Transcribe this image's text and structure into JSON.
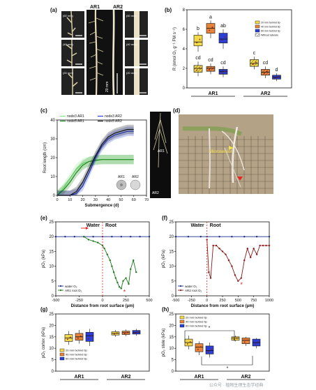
{
  "panels": {
    "a": {
      "letter": "(a)",
      "col_labels": [
        "AR1",
        "AR2"
      ],
      "left_tiles": [
        "(60 mm)",
        "(40 mm)",
        "(20 mm)"
      ],
      "right_tiles": [
        "(60 mm)",
        "(40 mm)",
        "(20 mm)"
      ],
      "scale_text": "20 mm"
    },
    "b": {
      "letter": "(b)",
      "chart_data": {
        "type": "box",
        "ylabel": "R (nmol O₂ g⁻¹ FM s⁻¹)",
        "ylim": [
          0,
          8
        ],
        "yticks": [
          0,
          2,
          4,
          6,
          8
        ],
        "groups": [
          "AR1",
          "AR2"
        ],
        "legend": [
          "20 mm behind tip",
          "40 mm behind tip",
          "60 mm behind tip",
          "Without laterals"
        ],
        "boxes": [
          {
            "group": "AR1",
            "series": "20 mm behind tip",
            "laterals": true,
            "q1": 4.3,
            "median": 4.7,
            "q3": 5.4,
            "min": 3.7,
            "max": 5.7,
            "letter": "b"
          },
          {
            "group": "AR1",
            "series": "40 mm behind tip",
            "laterals": true,
            "q1": 5.6,
            "median": 6.1,
            "q3": 6.6,
            "min": 5.1,
            "max": 6.9,
            "letter": "a"
          },
          {
            "group": "AR1",
            "series": "60 mm behind tip",
            "laterals": true,
            "q1": 4.6,
            "median": 5.0,
            "q3": 5.6,
            "min": 4.0,
            "max": 6.0,
            "letter": "ab"
          },
          {
            "group": "AR1",
            "series": "20 mm behind tip",
            "laterals": false,
            "q1": 1.6,
            "median": 2.0,
            "q3": 2.3,
            "min": 1.2,
            "max": 2.7,
            "letter": "cd"
          },
          {
            "group": "AR1",
            "series": "40 mm behind tip",
            "laterals": false,
            "q1": 1.7,
            "median": 2.0,
            "q3": 2.2,
            "min": 1.4,
            "max": 2.5,
            "letter": "cd"
          },
          {
            "group": "AR1",
            "series": "60 mm behind tip",
            "laterals": false,
            "q1": 1.4,
            "median": 1.7,
            "q3": 1.9,
            "min": 1.1,
            "max": 2.2,
            "letter": "cd"
          },
          {
            "group": "AR2",
            "series": "20 mm behind tip",
            "laterals": false,
            "q1": 2.2,
            "median": 2.5,
            "q3": 2.9,
            "min": 1.9,
            "max": 3.2,
            "letter": "c"
          },
          {
            "group": "AR2",
            "series": "40 mm behind tip",
            "laterals": false,
            "q1": 1.3,
            "median": 1.6,
            "q3": 1.9,
            "min": 1.0,
            "max": 2.2,
            "letter": "cd"
          },
          {
            "group": "AR2",
            "series": "60 mm behind tip",
            "laterals": false,
            "q1": 0.9,
            "median": 1.1,
            "q3": 1.3,
            "min": 0.7,
            "max": 1.5,
            "letter": "d"
          }
        ]
      }
    },
    "c": {
      "letter": "(c)",
      "chart_data": {
        "type": "line",
        "xlabel": "Submergence (d)",
        "ylabel": "Root length (cm)",
        "xlim": [
          0,
          70
        ],
        "ylim": [
          0,
          40
        ],
        "xticks": [
          0,
          10,
          20,
          30,
          40,
          50,
          60,
          70
        ],
        "yticks": [
          0,
          10,
          20,
          30,
          40
        ],
        "series": [
          {
            "name": "node3 AR1",
            "color": "#7fe37f",
            "x": [
              0,
              5,
              10,
              15,
              20,
              25,
              30,
              35,
              40,
              45,
              50,
              55,
              60
            ],
            "y": [
              0,
              4,
              9,
              14,
              17,
              18,
              19,
              19,
              19,
              19,
              19,
              19,
              19
            ]
          },
          {
            "name": "node5 AR1",
            "color": "#1f8a1f",
            "x": [
              0,
              5,
              10,
              15,
              20,
              25,
              30,
              35,
              40,
              45,
              50,
              55,
              60
            ],
            "y": [
              0,
              3,
              7,
              12,
              16,
              18,
              18.5,
              19,
              19,
              19,
              19,
              19,
              19
            ]
          },
          {
            "name": "node3 AR2",
            "color": "#1f3fd6",
            "x": [
              0,
              5,
              10,
              15,
              20,
              25,
              30,
              35,
              40,
              45,
              50,
              55,
              60
            ],
            "y": [
              0,
              0,
              0,
              1,
              5,
              12,
              20,
              26,
              30,
              32,
              33,
              34,
              34
            ]
          },
          {
            "name": "node5 AR2",
            "color": "#111111",
            "x": [
              0,
              5,
              10,
              15,
              20,
              25,
              30,
              35,
              40,
              45,
              50,
              55,
              60
            ],
            "y": [
              0,
              0,
              0,
              2,
              7,
              14,
              21,
              27,
              31,
              33,
              34,
              35,
              35
            ]
          }
        ],
        "inset_labels": [
          "AR1",
          "AR2"
        ],
        "side_image_labels": [
          "AR1",
          "AR2"
        ]
      }
    },
    "d": {
      "letter": "(d)",
      "label": "Microsensor"
    },
    "e": {
      "letter": "(e)",
      "chart_data": {
        "type": "line",
        "xlabel": "Distance from root surface (µm)",
        "ylabel": "pO₂ (kPa)",
        "xlim": [
          -500,
          500
        ],
        "ylim": [
          0,
          25
        ],
        "xticks": [
          -500,
          -250,
          0,
          250,
          500
        ],
        "yticks": [
          0,
          5,
          10,
          15,
          20,
          25
        ],
        "region_labels": [
          "Water",
          "Root"
        ],
        "legend": [
          "water O₂",
          "AR1 root O₂"
        ],
        "series": [
          {
            "name": "water O₂",
            "color": "#1a2a8c",
            "x": [
              -500,
              -400,
              -300,
              -200,
              -100,
              0,
              100,
              200,
              300,
              400,
              500
            ],
            "y": [
              20,
              20,
              20,
              20,
              20,
              20,
              20,
              20,
              20,
              20,
              20
            ]
          },
          {
            "name": "AR1 root O₂",
            "color": "#1a7a1a",
            "x": [
              -200,
              -150,
              -100,
              -50,
              0,
              20,
              50,
              80,
              100,
              120,
              140,
              160,
              180,
              200,
              220,
              250,
              280,
              300,
              330,
              360
            ],
            "y": [
              20,
              19,
              18.5,
              18,
              17,
              16,
              14,
              12,
              10,
              8,
              6,
              4.5,
              3,
              2.5,
              5,
              6,
              4,
              9,
              12,
              8
            ]
          }
        ],
        "annotation": "*"
      }
    },
    "f": {
      "letter": "(f)",
      "chart_data": {
        "type": "line",
        "xlabel": "Distance from root surface (µm)",
        "ylabel": "pO₂ (kPa)",
        "xlim": [
          -500,
          1000
        ],
        "ylim": [
          0,
          25
        ],
        "xticks": [
          -500,
          -250,
          0,
          250,
          500,
          750,
          1000
        ],
        "yticks": [
          0,
          5,
          10,
          15,
          20,
          25
        ],
        "region_labels": [
          "Water",
          "Root"
        ],
        "legend": [
          "water O₂",
          "AR2 root O₂"
        ],
        "series": [
          {
            "name": "water O₂",
            "color": "#1a2a8c",
            "x": [
              -500,
              -300,
              -100,
              0,
              200,
              400,
              600,
              800,
              1000
            ],
            "y": [
              20,
              20,
              20,
              20,
              20,
              20,
              20,
              20,
              20
            ]
          },
          {
            "name": "AR2 root O₂",
            "color": "#8b1a1a",
            "x": [
              0,
              30,
              60,
              100,
              150,
              200,
              250,
              300,
              350,
              400,
              450,
              500,
              550,
              600,
              650,
              700,
              750,
              800,
              850,
              900,
              950,
              1000
            ],
            "y": [
              19,
              8,
              6,
              17,
              17,
              16,
              15,
              14,
              12,
              10,
              7,
              5,
              6,
              12,
              16,
              13,
              16,
              14,
              17,
              17,
              17,
              17
            ]
          }
        ],
        "annotation": "*"
      }
    },
    "g": {
      "letter": "(g)",
      "chart_data": {
        "type": "box",
        "ylabel": "pO₂ cortex (kPa)",
        "ylim": [
          0,
          25
        ],
        "yticks": [
          0,
          5,
          10,
          15,
          20,
          25
        ],
        "groups": [
          "AR1",
          "AR2"
        ],
        "legend": [
          "20 mm behind tip",
          "40 mm behind tip",
          "60 mm behind tip"
        ],
        "boxes": [
          {
            "group": "AR1",
            "series": "20 mm behind tip",
            "q1": 13.0,
            "median": 14.5,
            "q3": 16.0,
            "min": 11.5,
            "max": 17.5
          },
          {
            "group": "AR1",
            "series": "40 mm behind tip",
            "q1": 13.5,
            "median": 15.0,
            "q3": 16.5,
            "min": 12.0,
            "max": 18.0
          },
          {
            "group": "AR1",
            "series": "60 mm behind tip",
            "q1": 13.0,
            "median": 15.5,
            "q3": 17.0,
            "min": 11.0,
            "max": 18.5
          },
          {
            "group": "AR2",
            "series": "20 mm behind tip",
            "q1": 15.8,
            "median": 16.5,
            "q3": 17.2,
            "min": 15.0,
            "max": 18.0
          },
          {
            "group": "AR2",
            "series": "40 mm behind tip",
            "q1": 16.0,
            "median": 16.8,
            "q3": 17.5,
            "min": 15.3,
            "max": 18.2
          },
          {
            "group": "AR2",
            "series": "60 mm behind tip",
            "q1": 16.2,
            "median": 17.0,
            "q3": 17.8,
            "min": 15.5,
            "max": 18.5
          }
        ]
      }
    },
    "h": {
      "letter": "(h)",
      "chart_data": {
        "type": "box",
        "ylabel": "pO₂ stele (kPa)",
        "ylim": [
          0,
          25
        ],
        "yticks": [
          0,
          5,
          10,
          15,
          20,
          25
        ],
        "groups": [
          "AR1",
          "AR2"
        ],
        "legend": [
          "20 mm behind tip",
          "40 mm behind tip",
          "60 mm behind tip"
        ],
        "boxes": [
          {
            "group": "AR1",
            "series": "20 mm behind tip",
            "q1": 11.0,
            "median": 12.5,
            "q3": 14.0,
            "min": 9.5,
            "max": 15.5
          },
          {
            "group": "AR1",
            "series": "40 mm behind tip",
            "q1": 8.5,
            "median": 10.5,
            "q3": 12.0,
            "min": 7.0,
            "max": 13.0
          },
          {
            "group": "AR1",
            "series": "60 mm behind tip",
            "q1": 7.5,
            "median": 9.0,
            "q3": 11.0,
            "min": 6.0,
            "max": 12.5
          },
          {
            "group": "AR2",
            "series": "20 mm behind tip",
            "q1": 13.5,
            "median": 14.5,
            "q3": 15.0,
            "min": 13.0,
            "max": 15.5
          },
          {
            "group": "AR2",
            "series": "40 mm behind tip",
            "q1": 12.0,
            "median": 13.5,
            "q3": 14.5,
            "min": 11.0,
            "max": 15.0
          },
          {
            "group": "AR2",
            "series": "60 mm behind tip",
            "q1": 11.0,
            "median": 12.5,
            "q3": 14.0,
            "min": 10.0,
            "max": 14.5
          }
        ],
        "significance": [
          "*",
          "*"
        ]
      }
    }
  },
  "colors": {
    "c20": "#f2d94a",
    "c40": "#e8843a",
    "c60": "#2b3fd6",
    "green_light": "#7fe37f",
    "green_dark": "#1f8a1f",
    "blue": "#1f3fd6",
    "red": "#e8251c"
  },
  "watermark": "公众号 · 植物生理生态学经典"
}
